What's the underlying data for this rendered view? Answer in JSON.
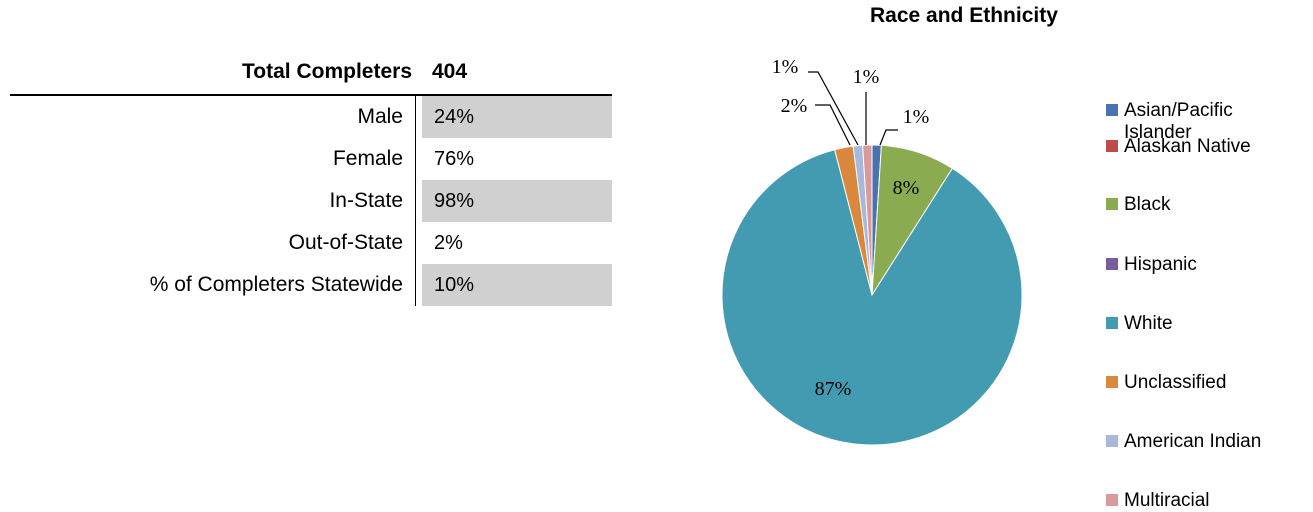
{
  "stats": {
    "header_label": "Total Completers",
    "header_value": "404",
    "rows": [
      {
        "label": "Male",
        "value": "24%"
      },
      {
        "label": "Female",
        "value": "76%"
      },
      {
        "label": "In-State",
        "value": "98%"
      },
      {
        "label": "Out-of-State",
        "value": "2%"
      },
      {
        "label": "% of Completers Statewide",
        "value": "10%"
      }
    ]
  },
  "chart_data": {
    "type": "pie",
    "title": "Race and Ethnicity",
    "legend_position": "right",
    "slices": [
      {
        "name": "Asian/Pacific Islander",
        "value": 1,
        "label": "1%",
        "color": "#4a72b0"
      },
      {
        "name": "Alaskan Native",
        "value": 0,
        "label": "",
        "color": "#be4b48"
      },
      {
        "name": "Black",
        "value": 8,
        "label": "8%",
        "color": "#8bab50"
      },
      {
        "name": "Hispanic",
        "value": 0,
        "label": "",
        "color": "#7a5e9a"
      },
      {
        "name": "White",
        "value": 87,
        "label": "87%",
        "color": "#439bb1"
      },
      {
        "name": "Unclassified",
        "value": 2,
        "label": "2%",
        "color": "#d9883e"
      },
      {
        "name": "American Indian",
        "value": 1,
        "label": "1%",
        "color": "#a6b8dc"
      },
      {
        "name": "Multiracial",
        "value": 1,
        "label": "1%",
        "color": "#d89a9a"
      }
    ]
  }
}
